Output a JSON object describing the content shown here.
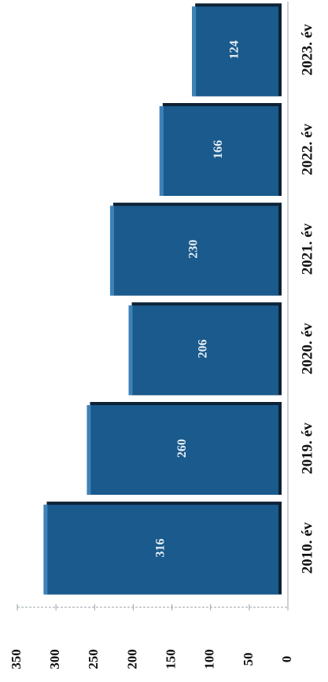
{
  "chart_data": {
    "type": "bar",
    "orientation": "horizontal-rotated",
    "title": "",
    "xlabel": "",
    "ylabel": "",
    "categories": [
      "2010. év",
      "2019. év",
      "2020. év",
      "2021. év",
      "2022. év",
      "2023. év"
    ],
    "values": [
      316,
      260,
      206,
      230,
      166,
      124
    ],
    "value_labels": [
      "316",
      "260",
      "206",
      "230",
      "166",
      "124"
    ],
    "ticks": [
      "0",
      "50",
      "100",
      "150",
      "200",
      "250",
      "300",
      "350"
    ],
    "ylim": [
      0,
      350
    ],
    "grid": false,
    "legend": "none",
    "colors": {
      "bar_fill": "#1a5a8c",
      "bar_shadow": "#0d2236",
      "bar_highlight": "#3f82b8",
      "axis": "#9aa3ab"
    }
  }
}
